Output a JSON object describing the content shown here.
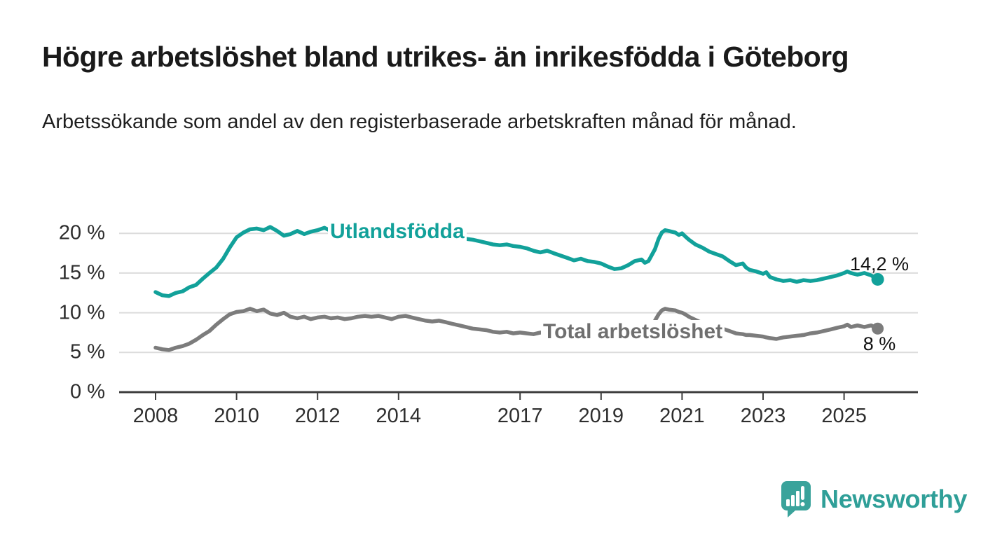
{
  "title": "Högre arbetslöshet bland utrikes- än inrikesfödda i Göteborg",
  "subtitle": "Arbetssökande som andel av den registerbaserade arbetskraften månad för månad.",
  "branding": {
    "name": "Newsworthy"
  },
  "colors": {
    "teal": "#12a19a",
    "gray": "#7c7c7c",
    "gray_label": "#6f6f6f",
    "grid": "#dcdcdc",
    "axis": "#3d3d3d",
    "logo_teal": "#3aa39b",
    "text": "#1a1a1a"
  },
  "chart_data": {
    "type": "line",
    "title": "Högre arbetslöshet bland utrikes- än inrikesfödda i Göteborg",
    "subtitle": "Arbetssökande som andel av den registerbaserade arbetskraften månad för månad.",
    "xlabel": "",
    "ylabel": "",
    "ylim": [
      0,
      22
    ],
    "xlim": [
      2007.1,
      2026.8
    ],
    "grid": "horizontal",
    "legend_position": "inline-labels",
    "y_ticks": [
      0,
      5,
      10,
      15,
      20
    ],
    "y_tick_labels": [
      "0 %",
      "5 %",
      "10 %",
      "15 %",
      "20 %"
    ],
    "x_ticks": [
      2008,
      2010,
      2012,
      2014,
      2017,
      2019,
      2021,
      2023,
      2025
    ],
    "x_tick_labels": [
      "2008",
      "2010",
      "2012",
      "2014",
      "2017",
      "2019",
      "2021",
      "2023",
      "2025"
    ],
    "x": [
      2008,
      2008.17,
      2008.33,
      2008.5,
      2008.67,
      2008.83,
      2009,
      2009.17,
      2009.33,
      2009.5,
      2009.67,
      2009.83,
      2010,
      2010.17,
      2010.33,
      2010.5,
      2010.67,
      2010.83,
      2011,
      2011.17,
      2011.33,
      2011.5,
      2011.67,
      2011.83,
      2012,
      2012.17,
      2012.33,
      2012.5,
      2012.67,
      2012.83,
      2013,
      2013.17,
      2013.33,
      2013.5,
      2013.67,
      2013.83,
      2014,
      2014.17,
      2014.33,
      2014.5,
      2014.67,
      2014.83,
      2015,
      2015.17,
      2015.33,
      2015.5,
      2015.67,
      2015.83,
      2016,
      2016.17,
      2016.33,
      2016.5,
      2016.67,
      2016.83,
      2017,
      2017.17,
      2017.33,
      2017.5,
      2017.67,
      2017.83,
      2018,
      2018.17,
      2018.33,
      2018.5,
      2018.67,
      2018.83,
      2019,
      2019.17,
      2019.33,
      2019.5,
      2019.67,
      2019.83,
      2020,
      2020.08,
      2020.17,
      2020.33,
      2020.42,
      2020.5,
      2020.58,
      2020.67,
      2020.83,
      2020.92,
      2021,
      2021.08,
      2021.17,
      2021.33,
      2021.5,
      2021.67,
      2021.83,
      2022,
      2022.17,
      2022.33,
      2022.5,
      2022.58,
      2022.67,
      2022.83,
      2023,
      2023.08,
      2023.17,
      2023.33,
      2023.5,
      2023.67,
      2023.83,
      2024,
      2024.17,
      2024.33,
      2024.5,
      2024.67,
      2024.83,
      2025,
      2025.08,
      2025.17,
      2025.33,
      2025.5,
      2025.67,
      2025.83
    ],
    "series": [
      {
        "name": "Utlandsfödda",
        "color": "#12a19a",
        "end_label": "14,2 %",
        "end_value": 14.2,
        "values": [
          12.6,
          12.2,
          12.1,
          12.5,
          12.7,
          13.2,
          13.5,
          14.3,
          15.0,
          15.7,
          16.8,
          18.2,
          19.5,
          20.1,
          20.5,
          20.6,
          20.4,
          20.8,
          20.3,
          19.7,
          19.9,
          20.3,
          19.9,
          20.2,
          20.4,
          20.7,
          20.3,
          20.5,
          20.2,
          20.4,
          20.3,
          20.5,
          20.2,
          20.4,
          20.1,
          20.0,
          20.1,
          19.9,
          19.8,
          19.9,
          19.7,
          19.6,
          19.6,
          19.5,
          19.4,
          19.4,
          19.3,
          19.2,
          19.0,
          18.8,
          18.6,
          18.5,
          18.6,
          18.4,
          18.3,
          18.1,
          17.8,
          17.6,
          17.8,
          17.5,
          17.2,
          16.9,
          16.6,
          16.8,
          16.5,
          16.4,
          16.2,
          15.8,
          15.5,
          15.6,
          16.0,
          16.5,
          16.7,
          16.3,
          16.5,
          18.0,
          19.3,
          20.1,
          20.4,
          20.3,
          20.1,
          19.8,
          20.0,
          19.6,
          19.2,
          18.6,
          18.2,
          17.7,
          17.4,
          17.1,
          16.5,
          16.0,
          16.2,
          15.7,
          15.4,
          15.2,
          14.9,
          15.1,
          14.5,
          14.2,
          14.0,
          14.1,
          13.9,
          14.1,
          14.0,
          14.1,
          14.3,
          14.5,
          14.7,
          15.0,
          15.2,
          15.0,
          14.8,
          15.0,
          14.7,
          14.2
        ]
      },
      {
        "name": "Total arbetslöshet",
        "color": "#7c7c7c",
        "end_label": "8 %",
        "end_value": 8.0,
        "values": [
          5.6,
          5.4,
          5.3,
          5.6,
          5.8,
          6.1,
          6.6,
          7.2,
          7.7,
          8.5,
          9.2,
          9.8,
          10.1,
          10.2,
          10.5,
          10.2,
          10.4,
          9.9,
          9.7,
          10.0,
          9.5,
          9.3,
          9.5,
          9.2,
          9.4,
          9.5,
          9.3,
          9.4,
          9.2,
          9.3,
          9.5,
          9.6,
          9.5,
          9.6,
          9.4,
          9.2,
          9.5,
          9.6,
          9.4,
          9.2,
          9.0,
          8.9,
          9.0,
          8.8,
          8.6,
          8.4,
          8.2,
          8.0,
          7.9,
          7.8,
          7.6,
          7.5,
          7.6,
          7.4,
          7.5,
          7.4,
          7.3,
          7.5,
          7.4,
          7.3,
          7.4,
          7.2,
          7.3,
          7.2,
          7.1,
          7.0,
          7.2,
          7.1,
          7.0,
          7.1,
          7.2,
          7.3,
          7.4,
          7.5,
          7.8,
          9.0,
          9.8,
          10.3,
          10.5,
          10.4,
          10.3,
          10.1,
          10.0,
          9.8,
          9.5,
          9.1,
          8.7,
          8.4,
          8.2,
          8.0,
          7.7,
          7.4,
          7.3,
          7.2,
          7.2,
          7.1,
          7.0,
          6.9,
          6.8,
          6.7,
          6.9,
          7.0,
          7.1,
          7.2,
          7.4,
          7.5,
          7.7,
          7.9,
          8.1,
          8.3,
          8.5,
          8.2,
          8.4,
          8.2,
          8.4,
          8.0
        ]
      }
    ]
  }
}
